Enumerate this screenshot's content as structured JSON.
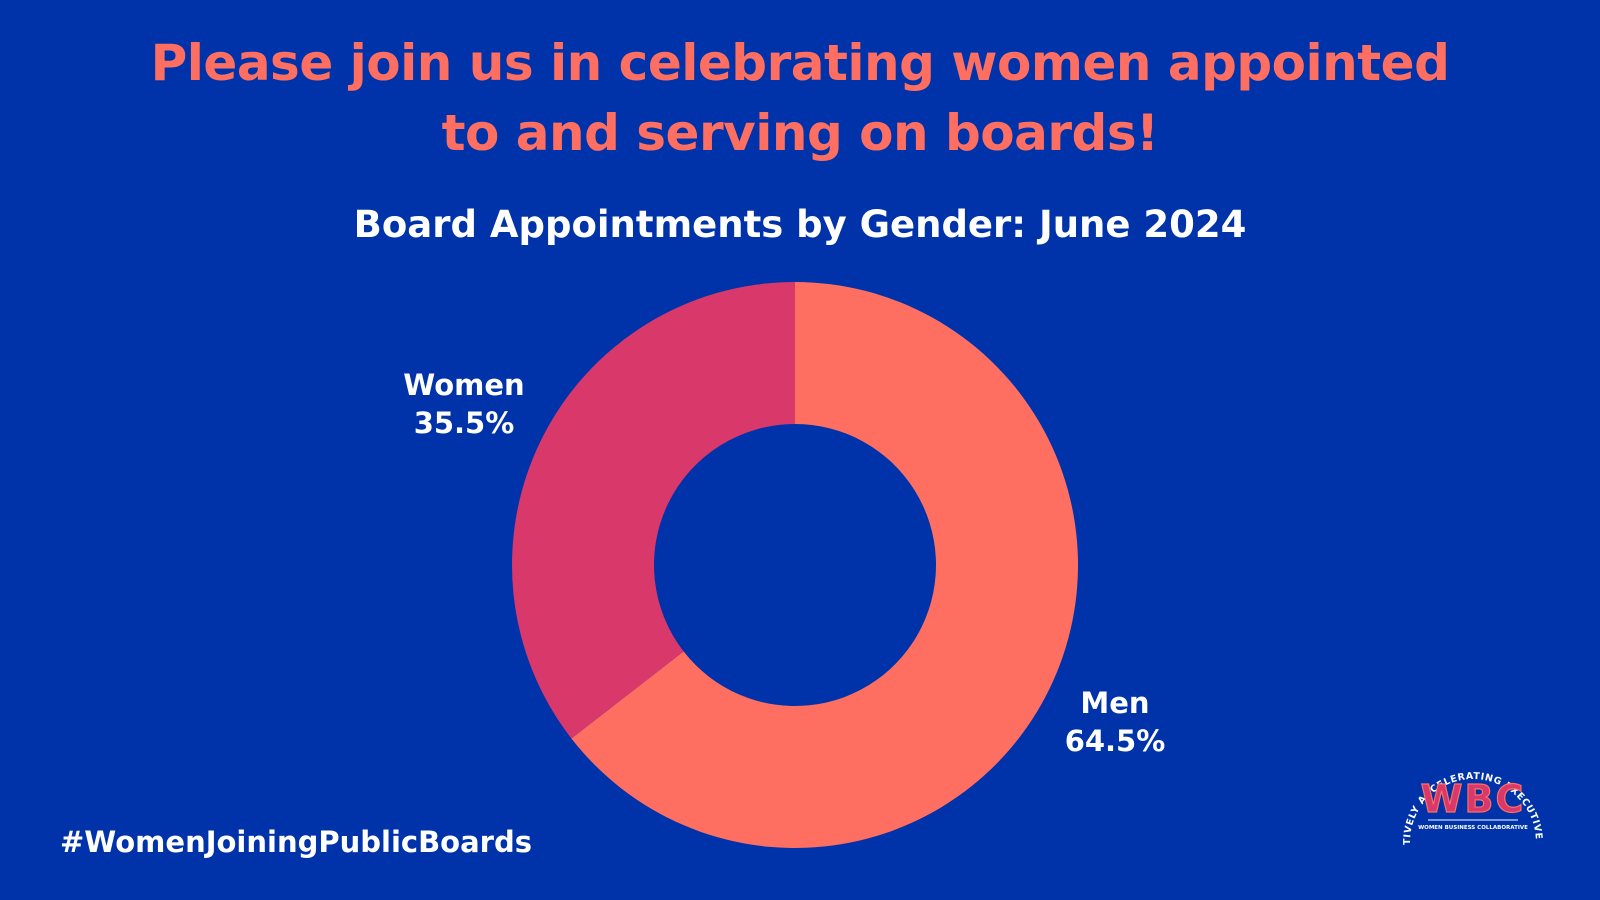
{
  "headline": {
    "line1": "Please join us in celebrating women appointed",
    "line2": "to and serving on boards!"
  },
  "hashtag": "#WomenJoiningPublicBoards",
  "logo": {
    "letters": "WBC",
    "arc_text": "COLLECTIVELY ACCELERATING EXECUTIVE WOMEN",
    "subtitle": "WOMEN BUSINESS COLLABORATIVE"
  },
  "colors": {
    "background": "#0033aa",
    "headline": "#ff6f61",
    "women": "#d8386a",
    "men": "#ff6f61"
  },
  "chart_data": {
    "type": "pie",
    "style": "donut",
    "title": "Board Appointments by Gender: June 2024",
    "slices": [
      {
        "name": "Men",
        "value": 64.5,
        "value_label": "64.5%",
        "color": "#ff6f61"
      },
      {
        "name": "Women",
        "value": 35.5,
        "value_label": "35.5%",
        "color": "#d8386a"
      }
    ],
    "start_angle": "12 o'clock",
    "direction": "clockwise",
    "legend": "none"
  }
}
